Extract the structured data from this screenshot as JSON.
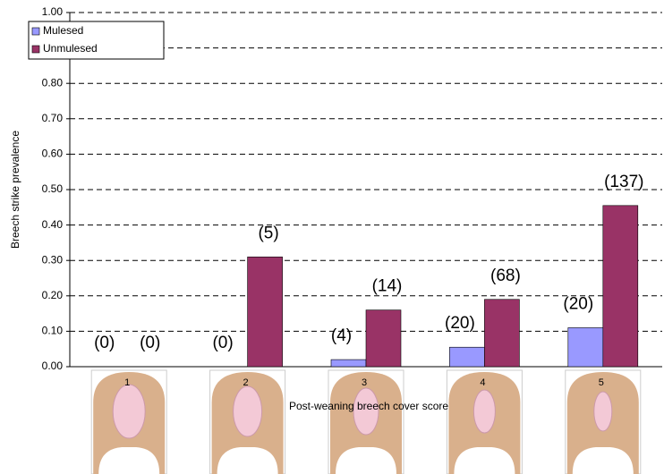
{
  "chart_data": {
    "type": "bar",
    "x_label": "Post-weaning breech cover score",
    "y_label": "Breech strike prevalence",
    "categories": [
      "1",
      "2",
      "3",
      "4",
      "5"
    ],
    "series": [
      {
        "name": "Mulesed",
        "color": "#9999ff",
        "values": [
          0,
          0,
          0.02,
          0.055,
          0.11
        ],
        "annotations": [
          "(0)",
          "(0)",
          "(4)",
          "(20)",
          "(20)"
        ]
      },
      {
        "name": "Unmulesed",
        "color": "#993366",
        "values": [
          0,
          0.31,
          0.16,
          0.19,
          0.455
        ],
        "annotations": [
          "(0)",
          "(5)",
          "(14)",
          "(68)",
          "(137)"
        ]
      }
    ],
    "ylim": [
      0,
      1
    ],
    "yticks": [
      {
        "value": 0,
        "label": "0.00"
      },
      {
        "value": 0.1,
        "label": "0.10"
      },
      {
        "value": 0.2,
        "label": "0.20"
      },
      {
        "value": 0.3,
        "label": "0.30"
      },
      {
        "value": 0.4,
        "label": "0.40"
      },
      {
        "value": 0.5,
        "label": "0.50"
      },
      {
        "value": 0.6,
        "label": "0.60"
      },
      {
        "value": 0.7,
        "label": "0.70"
      },
      {
        "value": 0.8,
        "label": "0.80"
      },
      {
        "value": 0.9,
        "label": "0.90"
      },
      {
        "value": 1,
        "label": "1.00"
      }
    ],
    "grid": true,
    "legend": "top-left"
  }
}
